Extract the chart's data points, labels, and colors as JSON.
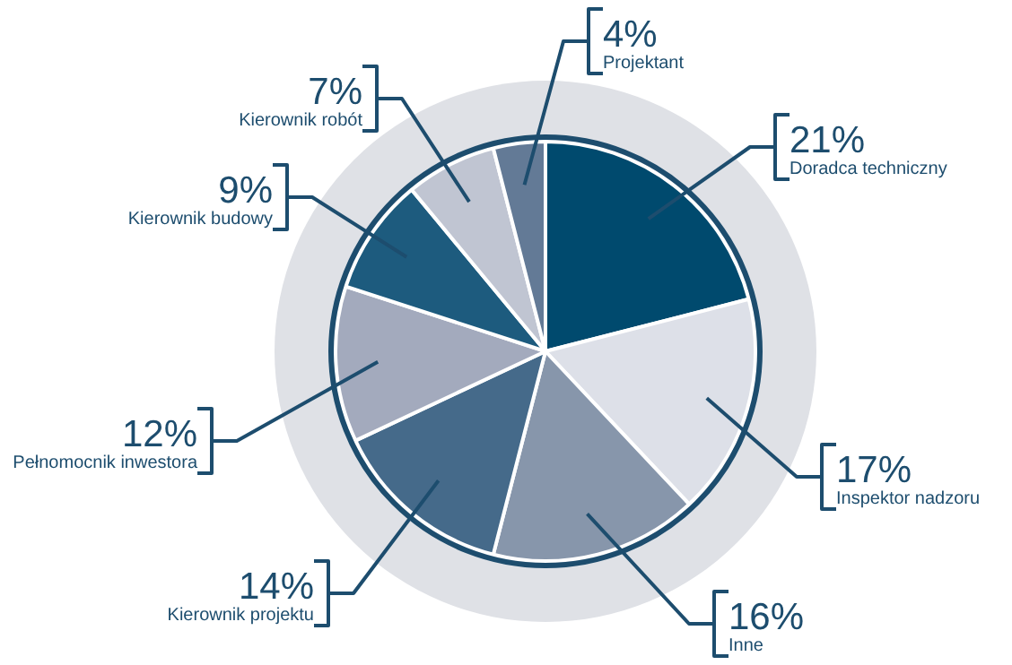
{
  "chart_data": {
    "type": "pie",
    "categories": [
      "Doradca techniczny",
      "Inspektor nadzoru",
      "Inne",
      "Kierownik projektu",
      "Pełnomocnik inwestora",
      "Kierownik budowy",
      "Kierownik robót",
      "Projektant"
    ],
    "values": [
      21,
      17,
      16,
      14,
      12,
      9,
      7,
      4
    ],
    "value_labels": [
      "21%",
      "17%",
      "16%",
      "14%",
      "12%",
      "9%",
      "7%",
      "4%"
    ],
    "colors": [
      "#004a6e",
      "#dde0e8",
      "#8796ab",
      "#456a8a",
      "#a3aabd",
      "#1d5b7e",
      "#c0c5d2",
      "#637a96"
    ],
    "legend": false
  }
}
